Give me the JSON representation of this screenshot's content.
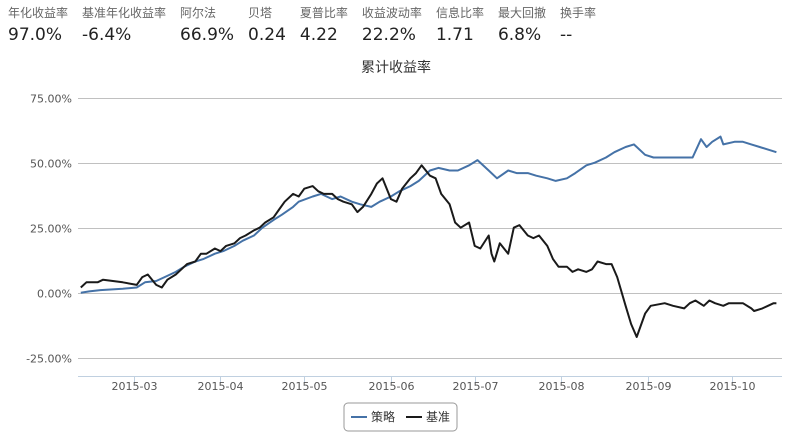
{
  "stats": [
    {
      "label": "年化收益率",
      "value": "97.0%"
    },
    {
      "label": "基准年化收益率",
      "value": "-6.4%"
    },
    {
      "label": "阿尔法",
      "value": "66.9%"
    },
    {
      "label": "贝塔",
      "value": "0.24"
    },
    {
      "label": "夏普比率",
      "value": "4.22"
    },
    {
      "label": "收益波动率",
      "value": "22.2%"
    },
    {
      "label": "信息比率",
      "value": "1.71"
    },
    {
      "label": "最大回撤",
      "value": "6.8%"
    },
    {
      "label": "换手率",
      "value": "--"
    }
  ],
  "chart_data": {
    "type": "line",
    "title": "累计收益率",
    "xlabel": "",
    "ylabel": "",
    "y_unit": "%",
    "ylim": [
      -32,
      81
    ],
    "yticks": [
      -25,
      0,
      25,
      50,
      75
    ],
    "ytick_labels": [
      "-25.00%",
      "0.00%",
      "25.00%",
      "50.00%",
      "75.00%"
    ],
    "xlim": [
      "2015-02-09",
      "2015-10-19"
    ],
    "xticks": [
      "2015-03-01",
      "2015-04-01",
      "2015-05-01",
      "2015-06-01",
      "2015-07-01",
      "2015-08-01",
      "2015-09-01",
      "2015-10-01"
    ],
    "xtick_labels": [
      "2015-03",
      "2015-04",
      "2015-05",
      "2015-06",
      "2015-07",
      "2015-08",
      "2015-09",
      "2015-10"
    ],
    "grid": true,
    "legend": "bottom-center",
    "series": [
      {
        "name": "策略",
        "color": "#4572a7",
        "points": [
          [
            "2015-02-10",
            0
          ],
          [
            "2015-02-13",
            0.5
          ],
          [
            "2015-02-17",
            1
          ],
          [
            "2015-02-25",
            1.5
          ],
          [
            "2015-03-02",
            2
          ],
          [
            "2015-03-05",
            4
          ],
          [
            "2015-03-09",
            4.5
          ],
          [
            "2015-03-12",
            6
          ],
          [
            "2015-03-16",
            8
          ],
          [
            "2015-03-19",
            10
          ],
          [
            "2015-03-23",
            12
          ],
          [
            "2015-03-26",
            13
          ],
          [
            "2015-03-30",
            15
          ],
          [
            "2015-04-02",
            16
          ],
          [
            "2015-04-06",
            18
          ],
          [
            "2015-04-09",
            20
          ],
          [
            "2015-04-13",
            22
          ],
          [
            "2015-04-16",
            25
          ],
          [
            "2015-04-20",
            28
          ],
          [
            "2015-04-23",
            30
          ],
          [
            "2015-04-27",
            33
          ],
          [
            "2015-04-29",
            35
          ],
          [
            "2015-05-04",
            37
          ],
          [
            "2015-05-07",
            38
          ],
          [
            "2015-05-11",
            36
          ],
          [
            "2015-05-14",
            37
          ],
          [
            "2015-05-18",
            35
          ],
          [
            "2015-05-21",
            34
          ],
          [
            "2015-05-25",
            33
          ],
          [
            "2015-05-28",
            35
          ],
          [
            "2015-06-01",
            37
          ],
          [
            "2015-06-04",
            39
          ],
          [
            "2015-06-08",
            41
          ],
          [
            "2015-06-11",
            43
          ],
          [
            "2015-06-15",
            47
          ],
          [
            "2015-06-18",
            48
          ],
          [
            "2015-06-22",
            47
          ],
          [
            "2015-06-25",
            47
          ],
          [
            "2015-06-29",
            49
          ],
          [
            "2015-07-02",
            51
          ],
          [
            "2015-07-06",
            47
          ],
          [
            "2015-07-09",
            44
          ],
          [
            "2015-07-13",
            47
          ],
          [
            "2015-07-16",
            46
          ],
          [
            "2015-07-20",
            46
          ],
          [
            "2015-07-23",
            45
          ],
          [
            "2015-07-27",
            44
          ],
          [
            "2015-07-30",
            43
          ],
          [
            "2015-08-03",
            44
          ],
          [
            "2015-08-06",
            46
          ],
          [
            "2015-08-10",
            49
          ],
          [
            "2015-08-13",
            50
          ],
          [
            "2015-08-17",
            52
          ],
          [
            "2015-08-20",
            54
          ],
          [
            "2015-08-24",
            56
          ],
          [
            "2015-08-27",
            57
          ],
          [
            "2015-08-31",
            53
          ],
          [
            "2015-09-03",
            52
          ],
          [
            "2015-09-07",
            52
          ],
          [
            "2015-09-10",
            52
          ],
          [
            "2015-09-14",
            52
          ],
          [
            "2015-09-17",
            52
          ],
          [
            "2015-09-20",
            59
          ],
          [
            "2015-09-22",
            56
          ],
          [
            "2015-09-24",
            58
          ],
          [
            "2015-09-27",
            60
          ],
          [
            "2015-09-28",
            57
          ],
          [
            "2015-10-02",
            58
          ],
          [
            "2015-10-05",
            58
          ],
          [
            "2015-10-08",
            57
          ],
          [
            "2015-10-11",
            56
          ],
          [
            "2015-10-14",
            55
          ],
          [
            "2015-10-17",
            54
          ]
        ]
      },
      {
        "name": "基准",
        "color": "#1a1a1a",
        "points": [
          [
            "2015-02-10",
            2
          ],
          [
            "2015-02-12",
            4
          ],
          [
            "2015-02-16",
            4
          ],
          [
            "2015-02-18",
            5
          ],
          [
            "2015-02-25",
            4
          ],
          [
            "2015-03-02",
            3
          ],
          [
            "2015-03-04",
            6
          ],
          [
            "2015-03-06",
            7
          ],
          [
            "2015-03-09",
            3
          ],
          [
            "2015-03-11",
            2
          ],
          [
            "2015-03-13",
            5
          ],
          [
            "2015-03-16",
            7
          ],
          [
            "2015-03-18",
            9
          ],
          [
            "2015-03-20",
            11
          ],
          [
            "2015-03-23",
            12
          ],
          [
            "2015-03-25",
            15
          ],
          [
            "2015-03-27",
            15
          ],
          [
            "2015-03-30",
            17
          ],
          [
            "2015-04-01",
            16
          ],
          [
            "2015-04-03",
            18
          ],
          [
            "2015-04-06",
            19
          ],
          [
            "2015-04-08",
            21
          ],
          [
            "2015-04-10",
            22
          ],
          [
            "2015-04-13",
            24
          ],
          [
            "2015-04-15",
            25
          ],
          [
            "2015-04-17",
            27
          ],
          [
            "2015-04-20",
            29
          ],
          [
            "2015-04-22",
            32
          ],
          [
            "2015-04-24",
            35
          ],
          [
            "2015-04-27",
            38
          ],
          [
            "2015-04-29",
            37
          ],
          [
            "2015-05-01",
            40
          ],
          [
            "2015-05-04",
            41
          ],
          [
            "2015-05-06",
            39
          ],
          [
            "2015-05-08",
            38
          ],
          [
            "2015-05-11",
            38
          ],
          [
            "2015-05-13",
            36
          ],
          [
            "2015-05-15",
            35
          ],
          [
            "2015-05-18",
            34
          ],
          [
            "2015-05-20",
            31
          ],
          [
            "2015-05-22",
            33
          ],
          [
            "2015-05-25",
            38
          ],
          [
            "2015-05-27",
            42
          ],
          [
            "2015-05-29",
            44
          ],
          [
            "2015-06-01",
            36
          ],
          [
            "2015-06-03",
            35
          ],
          [
            "2015-06-05",
            40
          ],
          [
            "2015-06-08",
            44
          ],
          [
            "2015-06-10",
            46
          ],
          [
            "2015-06-12",
            49
          ],
          [
            "2015-06-15",
            45
          ],
          [
            "2015-06-17",
            44
          ],
          [
            "2015-06-19",
            38
          ],
          [
            "2015-06-22",
            34
          ],
          [
            "2015-06-24",
            27
          ],
          [
            "2015-06-26",
            25
          ],
          [
            "2015-06-29",
            27
          ],
          [
            "2015-07-01",
            18
          ],
          [
            "2015-07-03",
            17
          ],
          [
            "2015-07-06",
            22
          ],
          [
            "2015-07-07",
            15
          ],
          [
            "2015-07-08",
            12
          ],
          [
            "2015-07-10",
            19
          ],
          [
            "2015-07-13",
            15
          ],
          [
            "2015-07-15",
            25
          ],
          [
            "2015-07-17",
            26
          ],
          [
            "2015-07-20",
            22
          ],
          [
            "2015-07-22",
            21
          ],
          [
            "2015-07-24",
            22
          ],
          [
            "2015-07-27",
            18
          ],
          [
            "2015-07-29",
            13
          ],
          [
            "2015-07-31",
            10
          ],
          [
            "2015-08-03",
            10
          ],
          [
            "2015-08-05",
            8
          ],
          [
            "2015-08-07",
            9
          ],
          [
            "2015-08-10",
            8
          ],
          [
            "2015-08-12",
            9
          ],
          [
            "2015-08-14",
            12
          ],
          [
            "2015-08-17",
            11
          ],
          [
            "2015-08-19",
            11
          ],
          [
            "2015-08-21",
            6
          ],
          [
            "2015-08-24",
            -5
          ],
          [
            "2015-08-26",
            -12
          ],
          [
            "2015-08-28",
            -17
          ],
          [
            "2015-08-31",
            -8
          ],
          [
            "2015-09-02",
            -5
          ],
          [
            "2015-09-07",
            -4
          ],
          [
            "2015-09-10",
            -5
          ],
          [
            "2015-09-14",
            -6
          ],
          [
            "2015-09-16",
            -4
          ],
          [
            "2015-09-18",
            -3
          ],
          [
            "2015-09-21",
            -5
          ],
          [
            "2015-09-23",
            -3
          ],
          [
            "2015-09-25",
            -4
          ],
          [
            "2015-09-28",
            -5
          ],
          [
            "2015-09-30",
            -4
          ],
          [
            "2015-10-05",
            -4
          ],
          [
            "2015-10-08",
            -6
          ],
          [
            "2015-10-09",
            -7
          ],
          [
            "2015-10-12",
            -6
          ],
          [
            "2015-10-14",
            -5
          ],
          [
            "2015-10-16",
            -4
          ],
          [
            "2015-10-17",
            -4
          ]
        ]
      }
    ]
  }
}
